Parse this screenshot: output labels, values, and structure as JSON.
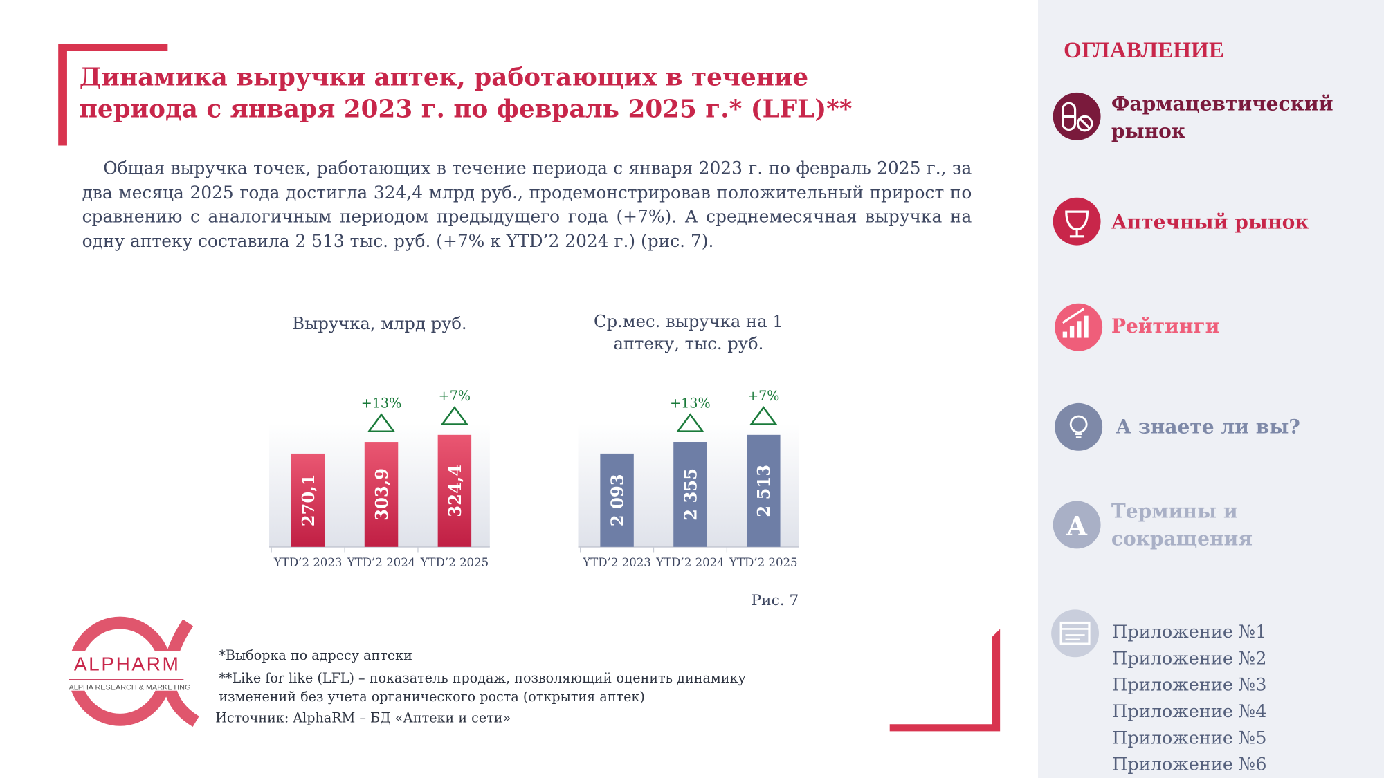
{
  "header": {
    "title": "Динамика выручки аптек, работающих в течение периода с января 2023 г. по февраль 2025 г.* (LFL)**"
  },
  "paragraph": "Общая выручка точек, работающих в течение периода с января 2023 г. по февраль 2025 г., за два месяца 2025 года достигла 324,4 млрд руб., продемонстрировав положительный прирост по сравнению с аналогичным периодом предыдущего года (+7%). А среднемесячная выручка на одну аптеку составила 2 513 тыс. руб. (+7% к YTD’2 2024 г.) (рис. 7).",
  "chart_data": [
    {
      "type": "bar",
      "title": "Выручка, млрд руб.",
      "categories": [
        "YTD’2 2023",
        "YTD’2 2024",
        "YTD’2 2025"
      ],
      "values": [
        270.1,
        303.9,
        324.4
      ],
      "value_labels": [
        "270,1",
        "303,9",
        "324,4"
      ],
      "growth_labels": [
        null,
        "+13%",
        "+7%"
      ],
      "color": "#c8264a"
    },
    {
      "type": "bar",
      "title": "Ср.мес. выручка на 1 аптеку, тыс. руб.",
      "categories": [
        "YTD’2 2023",
        "YTD’2 2024",
        "YTD’2 2025"
      ],
      "values": [
        2093,
        2355,
        2513
      ],
      "value_labels": [
        "2 093",
        "2 355",
        "2 513"
      ],
      "growth_labels": [
        null,
        "+13%",
        "+7%"
      ],
      "color": "#6e7ea6"
    }
  ],
  "figure_caption": "Рис. 7",
  "logo": {
    "name": "ALPHARM",
    "tagline": "ALPHA RESEARCH & MARKETING"
  },
  "footnotes": [
    "*Выборка по адресу аптеки",
    "**Like for like (LFL) – показатель продаж, позволяющий оценить динамику изменений без учета органического роста (открытия аптек)",
    "Источник: AlphaRM – БД «Аптеки и сети»"
  ],
  "sidebar": {
    "title": "ОГЛАВЛЕНИЕ",
    "items": [
      {
        "label": "Фармацевтический рынок"
      },
      {
        "label": "Аптечный рынок"
      },
      {
        "label": "Рейтинги"
      },
      {
        "label": "А знаете ли вы?"
      },
      {
        "label": "Термины и сокращения",
        "icon_letter": "A"
      }
    ],
    "appendices": [
      "Приложение №1",
      "Приложение №2",
      "Приложение №3",
      "Приложение №4",
      "Приложение №5",
      "Приложение №6"
    ]
  }
}
